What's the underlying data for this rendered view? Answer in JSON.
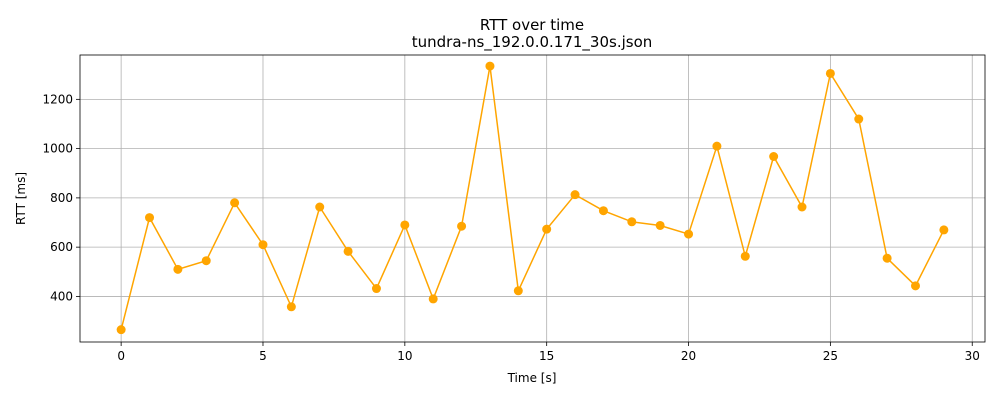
{
  "chart_data": {
    "type": "line",
    "title": "RTT over time",
    "subtitle": "tundra-ns_192.0.0.171_30s.json",
    "xlabel": "Time [s]",
    "ylabel": "RTT [ms]",
    "xlim": [
      -1.45,
      30.45
    ],
    "ylim": [
      215,
      1380
    ],
    "xticks": [
      0,
      5,
      10,
      15,
      20,
      25,
      30
    ],
    "yticks": [
      400,
      600,
      800,
      1000,
      1200
    ],
    "grid": true,
    "color": "#ffa500",
    "x": [
      0,
      1,
      2,
      3,
      4,
      5,
      6,
      7,
      8,
      9,
      10,
      11,
      12,
      13,
      14,
      15,
      16,
      17,
      18,
      19,
      20,
      21,
      22,
      23,
      24,
      25,
      26,
      27,
      28,
      29
    ],
    "values": [
      265,
      720,
      510,
      545,
      780,
      610,
      358,
      763,
      583,
      432,
      690,
      390,
      685,
      1335,
      423,
      673,
      813,
      748,
      703,
      688,
      653,
      1010,
      563,
      968,
      763,
      1305,
      1120,
      555,
      443,
      670
    ]
  }
}
